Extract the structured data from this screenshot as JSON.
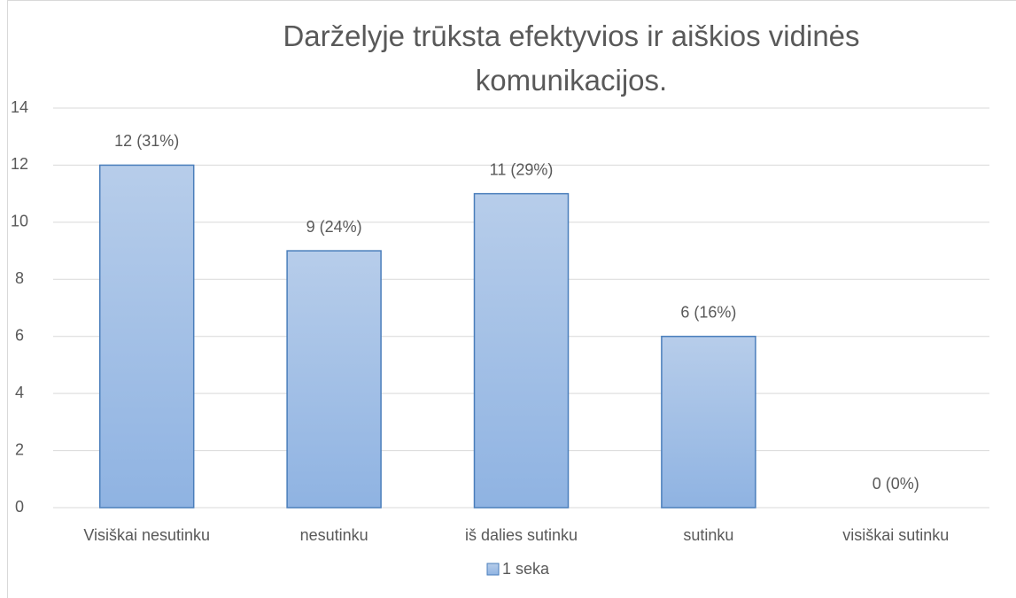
{
  "chart_data": {
    "type": "bar",
    "title": "Darželyje trūksta efektyvios ir aiškios vidinės komunikacijos.",
    "categories": [
      "Visiškai nesutinku",
      "nesutinku",
      "iš dalies sutinku",
      "sutinku",
      "visiškai sutinku"
    ],
    "series": [
      {
        "name": "1 seka",
        "color": "#9dbde6",
        "values": [
          12,
          9,
          11,
          6,
          0
        ],
        "value_labels": [
          "12 (31%)",
          "9 (24%)",
          "11 (29%)",
          "6 (16%)",
          "0 (0%)"
        ]
      }
    ],
    "ylim": [
      0,
      14
    ],
    "yticks": [
      0,
      2,
      4,
      6,
      8,
      10,
      12,
      14
    ],
    "grid": true,
    "legend": "bottom"
  }
}
